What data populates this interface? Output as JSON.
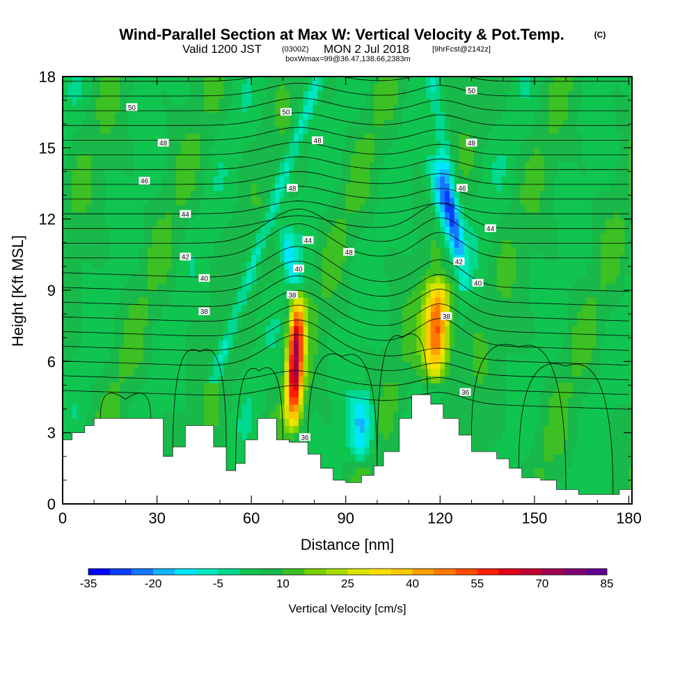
{
  "title": {
    "main": "Wind-Parallel Section at Max W: Vertical Velocity & Pot.Temp.",
    "main_suffix": "(C)",
    "line2_a": "Valid 1200 JST",
    "line2_b": "(0300Z)",
    "line2_c": "MON 2 Jul 2018",
    "line2_d": "[9hrFcst@2142z]",
    "line3": "boxWmax=99@36.47,138.66,2383m"
  },
  "colors": {
    "background_field": "#19b84a",
    "terrain": "#ffffff",
    "contour": "#000000",
    "colorbar": [
      "#0000ff",
      "#0a3cff",
      "#1478ff",
      "#14b4ff",
      "#00e6ff",
      "#00e8c0",
      "#00d890",
      "#10c450",
      "#19b84a",
      "#3cc024",
      "#78d000",
      "#a8dc00",
      "#d8e400",
      "#ffe000",
      "#ffc800",
      "#ffa000",
      "#ff7800",
      "#ff4a00",
      "#ff1e00",
      "#e00018",
      "#c00030",
      "#a00050",
      "#800070",
      "#600090"
    ]
  },
  "chart_data": {
    "type": "heatmap",
    "xlabel": "Distance [nm]",
    "ylabel": "Height [Kft MSL]",
    "xlim": [
      0,
      181
    ],
    "ylim": [
      0,
      18
    ],
    "xticks": [
      0,
      30,
      60,
      90,
      120,
      150,
      180
    ],
    "yticks": [
      0,
      3,
      6,
      9,
      12,
      15,
      18
    ],
    "colorbar": {
      "title": "Vertical Velocity [cm/s]",
      "min": -35,
      "max": 85,
      "step": 5,
      "labels": [
        -35,
        -20,
        -5,
        10,
        25,
        40,
        55,
        70,
        85
      ]
    },
    "terrain_profile": [
      {
        "x": 0,
        "h": 2.7
      },
      {
        "x": 3,
        "h": 3.0
      },
      {
        "x": 7,
        "h": 3.3
      },
      {
        "x": 10,
        "h": 3.6
      },
      {
        "x": 29,
        "h": 3.6
      },
      {
        "x": 32,
        "h": 2.0
      },
      {
        "x": 35,
        "h": 2.4
      },
      {
        "x": 39,
        "h": 3.3
      },
      {
        "x": 48,
        "h": 2.4
      },
      {
        "x": 52,
        "h": 1.4
      },
      {
        "x": 55,
        "h": 1.7
      },
      {
        "x": 58,
        "h": 2.7
      },
      {
        "x": 62,
        "h": 3.6
      },
      {
        "x": 68,
        "h": 2.7
      },
      {
        "x": 72,
        "h": 2.6
      },
      {
        "x": 78,
        "h": 2.1
      },
      {
        "x": 82,
        "h": 1.5
      },
      {
        "x": 86,
        "h": 1.0
      },
      {
        "x": 90,
        "h": 0.9
      },
      {
        "x": 95,
        "h": 1.2
      },
      {
        "x": 99,
        "h": 1.6
      },
      {
        "x": 102,
        "h": 2.2
      },
      {
        "x": 107,
        "h": 3.6
      },
      {
        "x": 111,
        "h": 4.6
      },
      {
        "x": 117,
        "h": 4.2
      },
      {
        "x": 121,
        "h": 3.6
      },
      {
        "x": 126,
        "h": 2.9
      },
      {
        "x": 130,
        "h": 2.2
      },
      {
        "x": 138,
        "h": 1.9
      },
      {
        "x": 142,
        "h": 1.5
      },
      {
        "x": 146,
        "h": 1.1
      },
      {
        "x": 152,
        "h": 1.0
      },
      {
        "x": 157,
        "h": 0.6
      },
      {
        "x": 164,
        "h": 0.4
      },
      {
        "x": 170,
        "h": 0.4
      },
      {
        "x": 177,
        "h": 0.6
      },
      {
        "x": 181,
        "h": 1.0
      }
    ],
    "features": [
      {
        "kind": "updraft",
        "x": 74,
        "z_bottom": 2.8,
        "z_top": 9.2,
        "peak": 70,
        "halfwidth": 2.5
      },
      {
        "kind": "updraft",
        "x": 119,
        "z_bottom": 4.8,
        "z_top": 9.8,
        "peak": 55,
        "halfwidth": 4.0
      },
      {
        "kind": "downdraft",
        "x": 95,
        "z_bottom": 1.5,
        "z_top": 5.0,
        "peak": -15,
        "halfwidth": 4.0
      },
      {
        "kind": "downdraft",
        "x": 122,
        "z_bottom": 10.0,
        "z_top": 15.0,
        "peak": -25,
        "halfwidth": 3.5
      },
      {
        "kind": "downdraft",
        "x": 72,
        "z_bottom": 9.0,
        "z_top": 12.0,
        "peak": -10,
        "halfwidth": 2.5
      }
    ],
    "contour_labels": [
      {
        "text": "50",
        "x": 22,
        "z": 16.7
      },
      {
        "text": "50",
        "x": 71,
        "z": 16.5
      },
      {
        "text": "50",
        "x": 130,
        "z": 17.4
      },
      {
        "text": "48",
        "x": 32,
        "z": 15.2
      },
      {
        "text": "48",
        "x": 81,
        "z": 15.3
      },
      {
        "text": "48",
        "x": 130,
        "z": 15.2
      },
      {
        "text": "48",
        "x": 73,
        "z": 13.3
      },
      {
        "text": "48",
        "x": 91,
        "z": 10.6
      },
      {
        "text": "46",
        "x": 26,
        "z": 13.6
      },
      {
        "text": "46",
        "x": 127,
        "z": 13.3
      },
      {
        "text": "44",
        "x": 39,
        "z": 12.2
      },
      {
        "text": "44",
        "x": 78,
        "z": 11.1
      },
      {
        "text": "44",
        "x": 136,
        "z": 11.6
      },
      {
        "text": "42",
        "x": 39,
        "z": 10.4
      },
      {
        "text": "42",
        "x": 126,
        "z": 10.2
      },
      {
        "text": "40",
        "x": 45,
        "z": 9.5
      },
      {
        "text": "40",
        "x": 75,
        "z": 9.9
      },
      {
        "text": "40",
        "x": 132,
        "z": 9.3
      },
      {
        "text": "38",
        "x": 73,
        "z": 8.8
      },
      {
        "text": "38",
        "x": 45,
        "z": 8.1
      },
      {
        "text": "38",
        "x": 122,
        "z": 7.9
      },
      {
        "text": "36",
        "x": 128,
        "z": 4.7
      },
      {
        "text": "36",
        "x": 77,
        "z": 2.8
      }
    ]
  }
}
